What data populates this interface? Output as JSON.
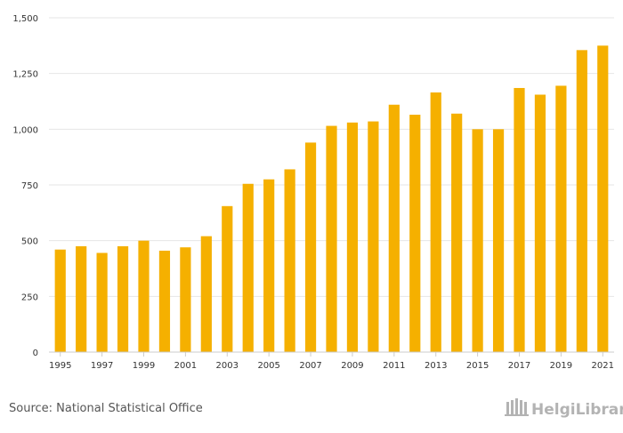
{
  "chart_data": {
    "type": "bar",
    "title": "",
    "xlabel": "",
    "ylabel": "",
    "ylim": [
      0,
      1500
    ],
    "yticks": [
      0,
      250,
      500,
      750,
      1000,
      1250,
      1500
    ],
    "ytick_labels": [
      "0",
      "250",
      "500",
      "750",
      "1,000",
      "1,250",
      "1,500"
    ],
    "grid": true,
    "legend": "none",
    "categories": [
      "1995",
      "1996",
      "1997",
      "1998",
      "1999",
      "2000",
      "2001",
      "2002",
      "2003",
      "2004",
      "2005",
      "2006",
      "2007",
      "2008",
      "2009",
      "2010",
      "2011",
      "2012",
      "2013",
      "2014",
      "2015",
      "2016",
      "2017",
      "2018",
      "2019",
      "2020",
      "2021"
    ],
    "xtick_labels": [
      "1995",
      "1997",
      "1999",
      "2001",
      "2003",
      "2005",
      "2007",
      "2009",
      "2011",
      "2013",
      "2015",
      "2017",
      "2019",
      "2021"
    ],
    "values": [
      460,
      475,
      445,
      475,
      500,
      455,
      470,
      520,
      655,
      755,
      775,
      820,
      940,
      1015,
      1030,
      1035,
      1110,
      1065,
      1165,
      1070,
      1000,
      1000,
      1185,
      1155,
      1195,
      1355,
      1375
    ],
    "bar_color": "#f5b000"
  },
  "footer": {
    "source": "Source: National Statistical Office",
    "logo": "HelgiLibrary."
  },
  "colors": {
    "grid": "#e6e6e6",
    "axis": "#cccccc",
    "logo": "#b3b3b3"
  }
}
